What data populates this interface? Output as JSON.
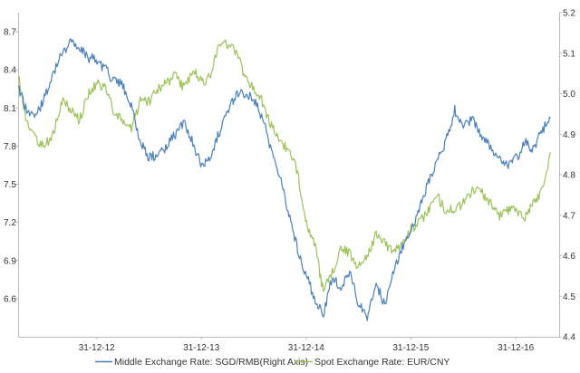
{
  "chart_data": {
    "type": "line",
    "title": "",
    "xlabel": "",
    "ylabel": "",
    "x_ticks": [
      "31-12-12",
      "31-12-13",
      "31-12-14",
      "31-12-15",
      "31-12-16"
    ],
    "x_range": [
      "2012-04-01",
      "2017-05-31"
    ],
    "y_left": {
      "ticks": [
        "6.6",
        "6.9",
        "7.2",
        "7.5",
        "7.8",
        "8.1",
        "8.4",
        "8.7"
      ],
      "range": [
        6.3,
        8.85
      ]
    },
    "y_right": {
      "ticks": [
        "4.4",
        "4.5",
        "4.6",
        "4.7",
        "4.8",
        "4.9",
        "5.0",
        "5.1",
        "5.2"
      ],
      "range": [
        4.4,
        5.2
      ]
    },
    "grid": false,
    "legend_position": "bottom",
    "series": [
      {
        "name": "Middle Exchange Rate: SGD/RMB(Right Axis)",
        "axis": "right",
        "color": "#4a7fb8",
        "points": [
          [
            "2012-04-01",
            5.02
          ],
          [
            "2012-05-01",
            4.96
          ],
          [
            "2012-06-01",
            4.94
          ],
          [
            "2012-07-01",
            4.99
          ],
          [
            "2012-08-01",
            5.05
          ],
          [
            "2012-09-01",
            5.1
          ],
          [
            "2012-10-01",
            5.13
          ],
          [
            "2012-11-01",
            5.11
          ],
          [
            "2012-12-01",
            5.09
          ],
          [
            "2013-01-01",
            5.08
          ],
          [
            "2013-02-01",
            5.06
          ],
          [
            "2013-03-01",
            5.03
          ],
          [
            "2013-04-01",
            5.02
          ],
          [
            "2013-05-01",
            4.97
          ],
          [
            "2013-06-01",
            4.88
          ],
          [
            "2013-07-01",
            4.84
          ],
          [
            "2013-08-01",
            4.85
          ],
          [
            "2013-09-01",
            4.87
          ],
          [
            "2013-10-01",
            4.9
          ],
          [
            "2013-11-01",
            4.93
          ],
          [
            "2013-12-01",
            4.88
          ],
          [
            "2014-01-01",
            4.82
          ],
          [
            "2014-02-01",
            4.85
          ],
          [
            "2014-03-01",
            4.9
          ],
          [
            "2014-04-01",
            4.95
          ],
          [
            "2014-05-01",
            5.0
          ],
          [
            "2014-06-01",
            5.0
          ],
          [
            "2014-07-01",
            4.99
          ],
          [
            "2014-08-01",
            4.94
          ],
          [
            "2014-09-01",
            4.86
          ],
          [
            "2014-10-01",
            4.8
          ],
          [
            "2014-11-01",
            4.7
          ],
          [
            "2014-12-01",
            4.62
          ],
          [
            "2015-01-01",
            4.55
          ],
          [
            "2015-02-01",
            4.49
          ],
          [
            "2015-03-01",
            4.45
          ],
          [
            "2015-04-01",
            4.55
          ],
          [
            "2015-05-01",
            4.52
          ],
          [
            "2015-06-01",
            4.56
          ],
          [
            "2015-07-01",
            4.48
          ],
          [
            "2015-08-01",
            4.45
          ],
          [
            "2015-09-01",
            4.53
          ],
          [
            "2015-10-01",
            4.48
          ],
          [
            "2015-11-01",
            4.56
          ],
          [
            "2015-12-01",
            4.62
          ],
          [
            "2016-01-01",
            4.66
          ],
          [
            "2016-02-01",
            4.72
          ],
          [
            "2016-03-01",
            4.78
          ],
          [
            "2016-04-01",
            4.84
          ],
          [
            "2016-05-01",
            4.88
          ],
          [
            "2016-06-01",
            4.96
          ],
          [
            "2016-07-01",
            4.92
          ],
          [
            "2016-08-01",
            4.94
          ],
          [
            "2016-09-01",
            4.9
          ],
          [
            "2016-10-01",
            4.87
          ],
          [
            "2016-11-01",
            4.84
          ],
          [
            "2016-12-01",
            4.82
          ],
          [
            "2017-01-01",
            4.84
          ],
          [
            "2017-02-01",
            4.88
          ],
          [
            "2017-03-01",
            4.86
          ],
          [
            "2017-04-01",
            4.91
          ],
          [
            "2017-05-01",
            4.94
          ]
        ]
      },
      {
        "name": "Spot Exchange Rate: EUR/CNY",
        "axis": "left",
        "color": "#9dc25a",
        "points": [
          [
            "2012-04-01",
            8.35
          ],
          [
            "2012-05-01",
            8.0
          ],
          [
            "2012-06-01",
            7.85
          ],
          [
            "2012-07-01",
            7.8
          ],
          [
            "2012-08-01",
            7.9
          ],
          [
            "2012-09-01",
            8.15
          ],
          [
            "2012-10-01",
            8.1
          ],
          [
            "2012-11-01",
            8.0
          ],
          [
            "2012-12-01",
            8.2
          ],
          [
            "2013-01-01",
            8.3
          ],
          [
            "2013-02-01",
            8.25
          ],
          [
            "2013-03-01",
            8.05
          ],
          [
            "2013-04-01",
            8.0
          ],
          [
            "2013-05-01",
            7.95
          ],
          [
            "2013-06-01",
            8.15
          ],
          [
            "2013-07-01",
            8.15
          ],
          [
            "2013-08-01",
            8.25
          ],
          [
            "2013-09-01",
            8.3
          ],
          [
            "2013-10-01",
            8.35
          ],
          [
            "2013-11-01",
            8.25
          ],
          [
            "2013-12-01",
            8.4
          ],
          [
            "2014-01-01",
            8.3
          ],
          [
            "2014-02-01",
            8.35
          ],
          [
            "2014-03-01",
            8.62
          ],
          [
            "2014-04-01",
            8.6
          ],
          [
            "2014-05-01",
            8.55
          ],
          [
            "2014-06-01",
            8.35
          ],
          [
            "2014-07-01",
            8.25
          ],
          [
            "2014-08-01",
            8.15
          ],
          [
            "2014-09-01",
            7.95
          ],
          [
            "2014-10-01",
            7.85
          ],
          [
            "2014-11-01",
            7.75
          ],
          [
            "2014-12-01",
            7.6
          ],
          [
            "2015-01-01",
            7.2
          ],
          [
            "2015-02-01",
            7.0
          ],
          [
            "2015-03-01",
            6.65
          ],
          [
            "2015-04-01",
            6.8
          ],
          [
            "2015-05-01",
            7.0
          ],
          [
            "2015-06-01",
            6.95
          ],
          [
            "2015-07-01",
            6.85
          ],
          [
            "2015-08-01",
            6.95
          ],
          [
            "2015-09-01",
            7.1
          ],
          [
            "2015-10-01",
            7.05
          ],
          [
            "2015-11-01",
            6.95
          ],
          [
            "2015-12-01",
            7.05
          ],
          [
            "2016-01-01",
            7.15
          ],
          [
            "2016-02-01",
            7.2
          ],
          [
            "2016-03-01",
            7.3
          ],
          [
            "2016-04-01",
            7.4
          ],
          [
            "2016-05-01",
            7.3
          ],
          [
            "2016-06-01",
            7.3
          ],
          [
            "2016-07-01",
            7.35
          ],
          [
            "2016-08-01",
            7.45
          ],
          [
            "2016-09-01",
            7.45
          ],
          [
            "2016-10-01",
            7.35
          ],
          [
            "2016-11-01",
            7.25
          ],
          [
            "2016-12-01",
            7.3
          ],
          [
            "2017-01-01",
            7.3
          ],
          [
            "2017-02-01",
            7.25
          ],
          [
            "2017-03-01",
            7.35
          ],
          [
            "2017-04-01",
            7.45
          ],
          [
            "2017-05-01",
            7.75
          ]
        ]
      }
    ]
  }
}
